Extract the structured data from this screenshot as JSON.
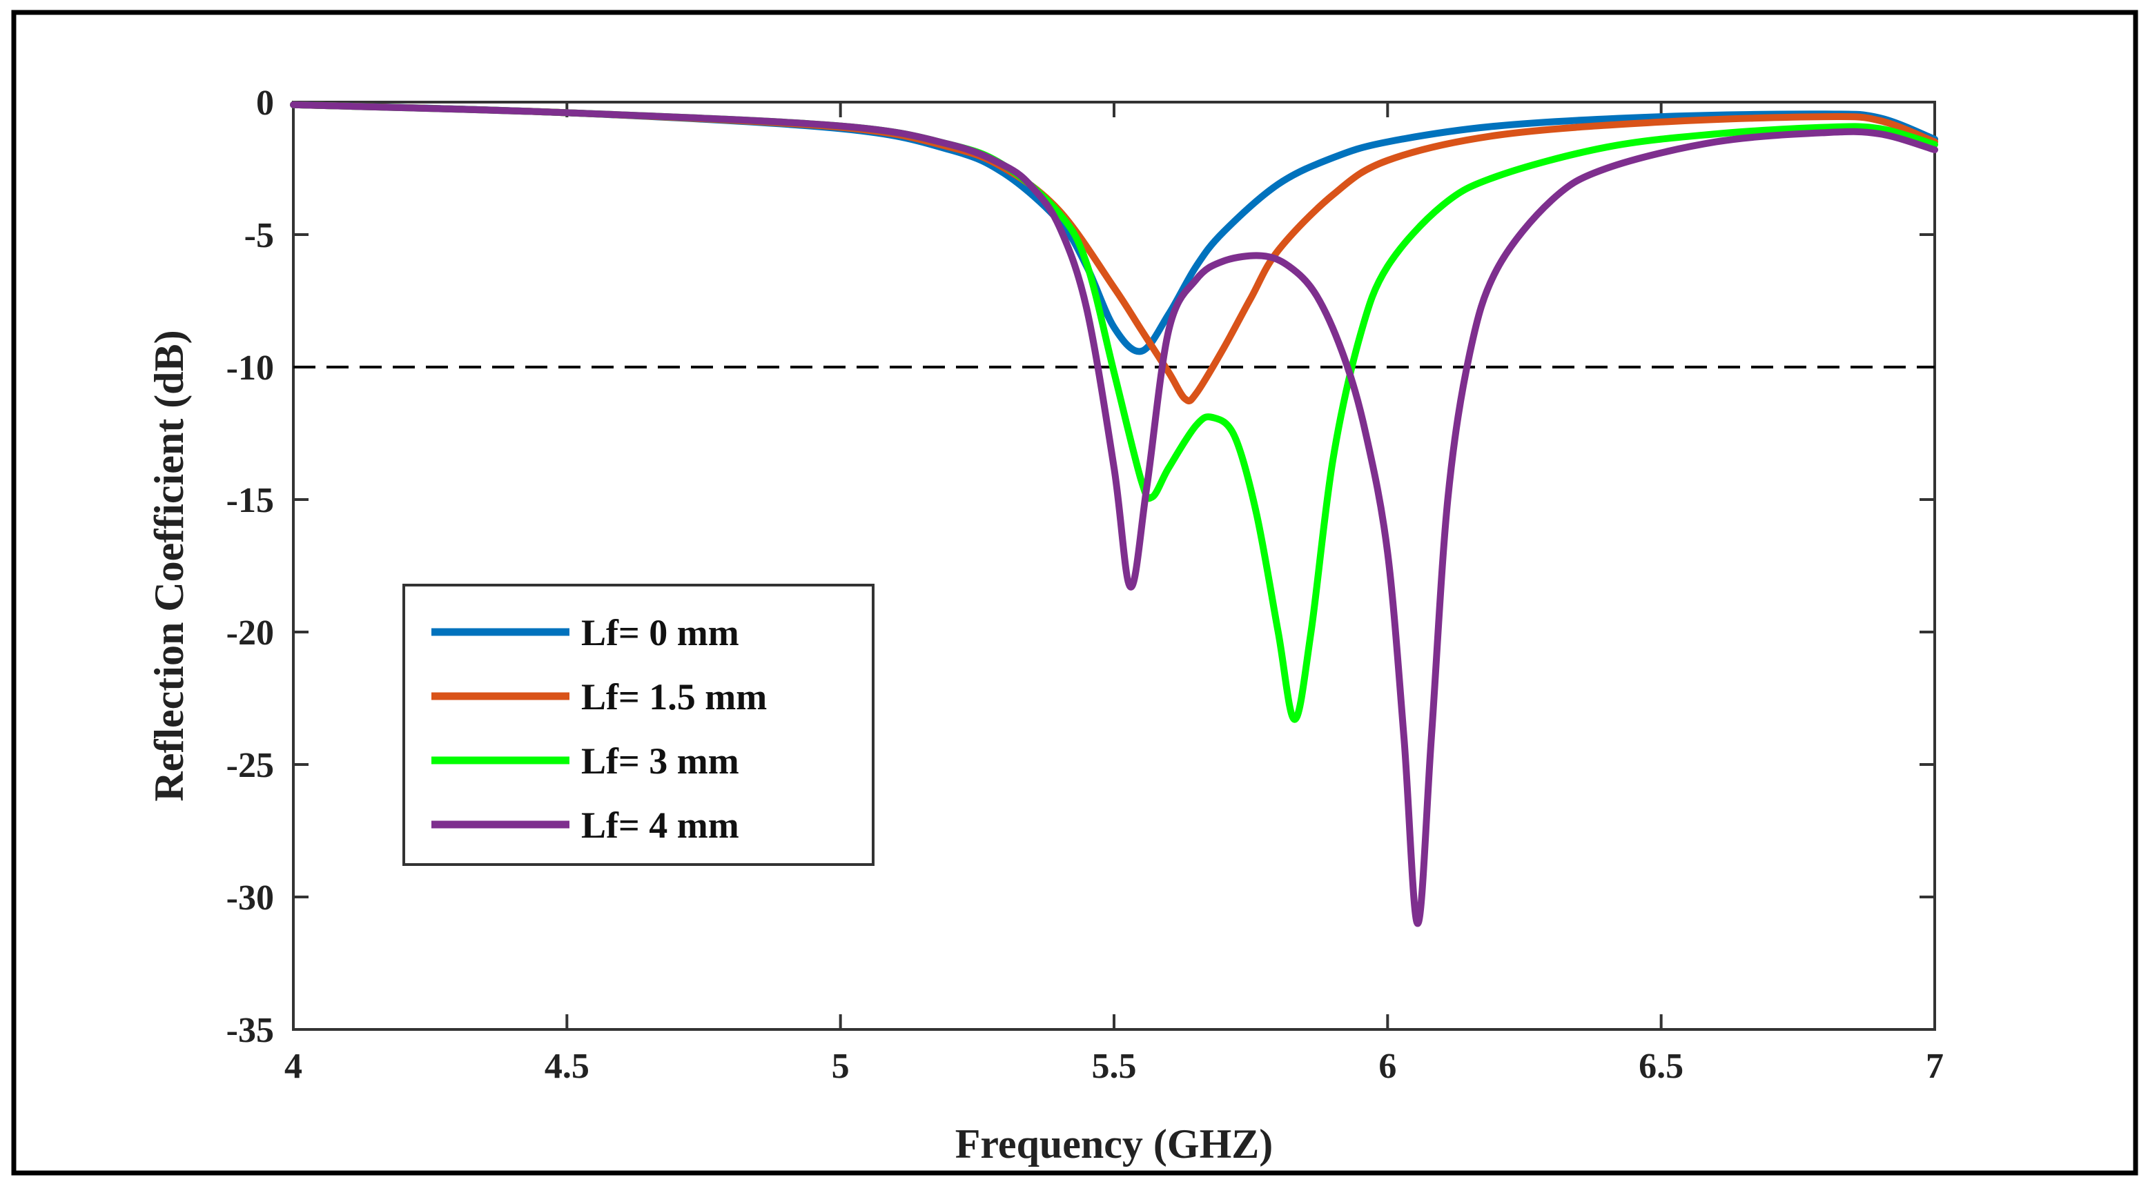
{
  "chart_data": {
    "type": "line",
    "title": "",
    "xlabel": "Frequency (GHZ)",
    "ylabel": "Reflection Coefficient (dB)",
    "xlim": [
      4,
      7
    ],
    "ylim": [
      -35,
      0
    ],
    "xticks": [
      4,
      4.5,
      5,
      5.5,
      6,
      6.5,
      7
    ],
    "xtick_labels": [
      "4",
      "4.5",
      "5",
      "5.5",
      "6",
      "6.5",
      "7"
    ],
    "yticks": [
      0,
      -5,
      -10,
      -15,
      -20,
      -25,
      -30,
      -35
    ],
    "ytick_labels": [
      "0",
      "-5",
      "-10",
      "-15",
      "-20",
      "-25",
      "-30",
      "-35"
    ],
    "grid": false,
    "legend_position": "lower-left",
    "reference_line": {
      "y": -10,
      "style": "dashed",
      "color": "#000000"
    },
    "series": [
      {
        "name": "Lf= 0 mm",
        "color": "#0072BD",
        "x": [
          4,
          4.5,
          5,
          5.2,
          5.3,
          5.4,
          5.45,
          5.5,
          5.55,
          5.6,
          5.65,
          5.7,
          5.8,
          5.9,
          6,
          6.2,
          6.5,
          6.8,
          6.9,
          7
        ],
        "y": [
          -0.1,
          -0.4,
          -1.0,
          -1.8,
          -2.7,
          -4.5,
          -6.2,
          -8.5,
          -9.4,
          -8.0,
          -6.2,
          -4.9,
          -3.1,
          -2.1,
          -1.5,
          -0.9,
          -0.55,
          -0.45,
          -0.6,
          -1.4
        ]
      },
      {
        "name": "Lf= 1.5 mm",
        "color": "#D95319",
        "x": [
          4,
          4.5,
          5,
          5.2,
          5.3,
          5.4,
          5.5,
          5.55,
          5.6,
          5.63,
          5.65,
          5.7,
          5.75,
          5.8,
          5.9,
          6,
          6.2,
          6.5,
          6.8,
          6.9,
          7
        ],
        "y": [
          -0.1,
          -0.4,
          -0.95,
          -1.7,
          -2.5,
          -4.1,
          -7.0,
          -8.6,
          -10.2,
          -11.2,
          -11.0,
          -9.3,
          -7.4,
          -5.6,
          -3.5,
          -2.2,
          -1.25,
          -0.75,
          -0.55,
          -0.7,
          -1.5
        ]
      },
      {
        "name": "Lf= 3 mm",
        "color": "#00FF00",
        "x": [
          4,
          4.5,
          5,
          5.2,
          5.3,
          5.4,
          5.45,
          5.5,
          5.55,
          5.57,
          5.6,
          5.65,
          5.68,
          5.72,
          5.76,
          5.8,
          5.83,
          5.86,
          5.9,
          5.95,
          6,
          6.1,
          6.2,
          6.4,
          6.6,
          6.8,
          6.9,
          7
        ],
        "y": [
          -0.1,
          -0.4,
          -0.9,
          -1.6,
          -2.4,
          -4.2,
          -6.1,
          -10.2,
          -14.3,
          -14.9,
          -13.8,
          -12.2,
          -11.9,
          -12.6,
          -15.5,
          -20.0,
          -23.3,
          -20.0,
          -13.5,
          -8.8,
          -6.2,
          -3.9,
          -2.8,
          -1.7,
          -1.2,
          -0.95,
          -1.0,
          -1.6
        ]
      },
      {
        "name": "Lf= 4 mm",
        "color": "#7E2F8E",
        "x": [
          4,
          4.5,
          5,
          5.2,
          5.3,
          5.35,
          5.4,
          5.45,
          5.5,
          5.53,
          5.56,
          5.6,
          5.65,
          5.7,
          5.77,
          5.82,
          5.87,
          5.92,
          5.96,
          6.0,
          6.03,
          6.055,
          6.08,
          6.11,
          6.15,
          6.2,
          6.3,
          6.4,
          6.6,
          6.8,
          6.9,
          7
        ],
        "y": [
          -0.1,
          -0.4,
          -0.9,
          -1.6,
          -2.4,
          -3.2,
          -4.7,
          -7.8,
          -13.8,
          -18.3,
          -14.5,
          -8.6,
          -6.7,
          -6.0,
          -5.8,
          -6.2,
          -7.3,
          -9.6,
          -12.5,
          -17.0,
          -24.0,
          -31.0,
          -24.0,
          -15.0,
          -9.5,
          -6.3,
          -3.7,
          -2.5,
          -1.5,
          -1.15,
          -1.2,
          -1.8
        ]
      }
    ]
  }
}
